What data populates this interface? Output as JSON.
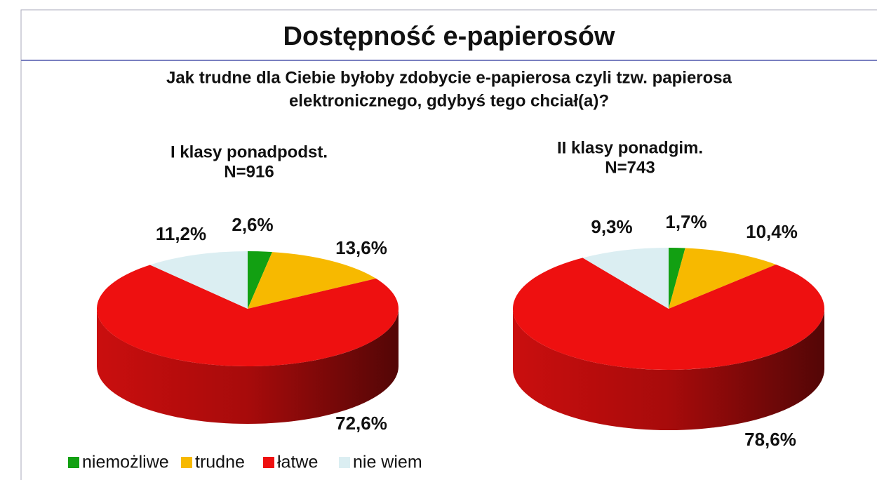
{
  "header": {
    "title": "Dostępność e-papierosów",
    "subtitle": [
      "Jak trudne dla Ciebie byłoby zdobycie e-papierosa czyli tzw. papierosa",
      "elektronicznego, gdybyś tego chciał(a)?"
    ]
  },
  "legend": {
    "categories": [
      "niemożliwe",
      "trudne",
      "łatwe",
      "nie wiem"
    ],
    "colors": [
      "#12a012",
      "#f7b900",
      "#ee1010",
      "#dbeef2"
    ]
  },
  "chart_data": [
    {
      "type": "pie",
      "title": "I klasy ponadpodst.",
      "subtitle": "N=916",
      "values": [
        2.6,
        13.6,
        72.6,
        11.2
      ],
      "value_labels": [
        "2,6%",
        "13,6%",
        "72,6%",
        "11,2%"
      ]
    },
    {
      "type": "pie",
      "title": "II klasy ponadgim.",
      "subtitle": "N=743",
      "values": [
        1.7,
        10.4,
        78.6,
        9.3
      ],
      "value_labels": [
        "1,7%",
        "10,4%",
        "78,6%",
        "9,3%"
      ]
    }
  ]
}
